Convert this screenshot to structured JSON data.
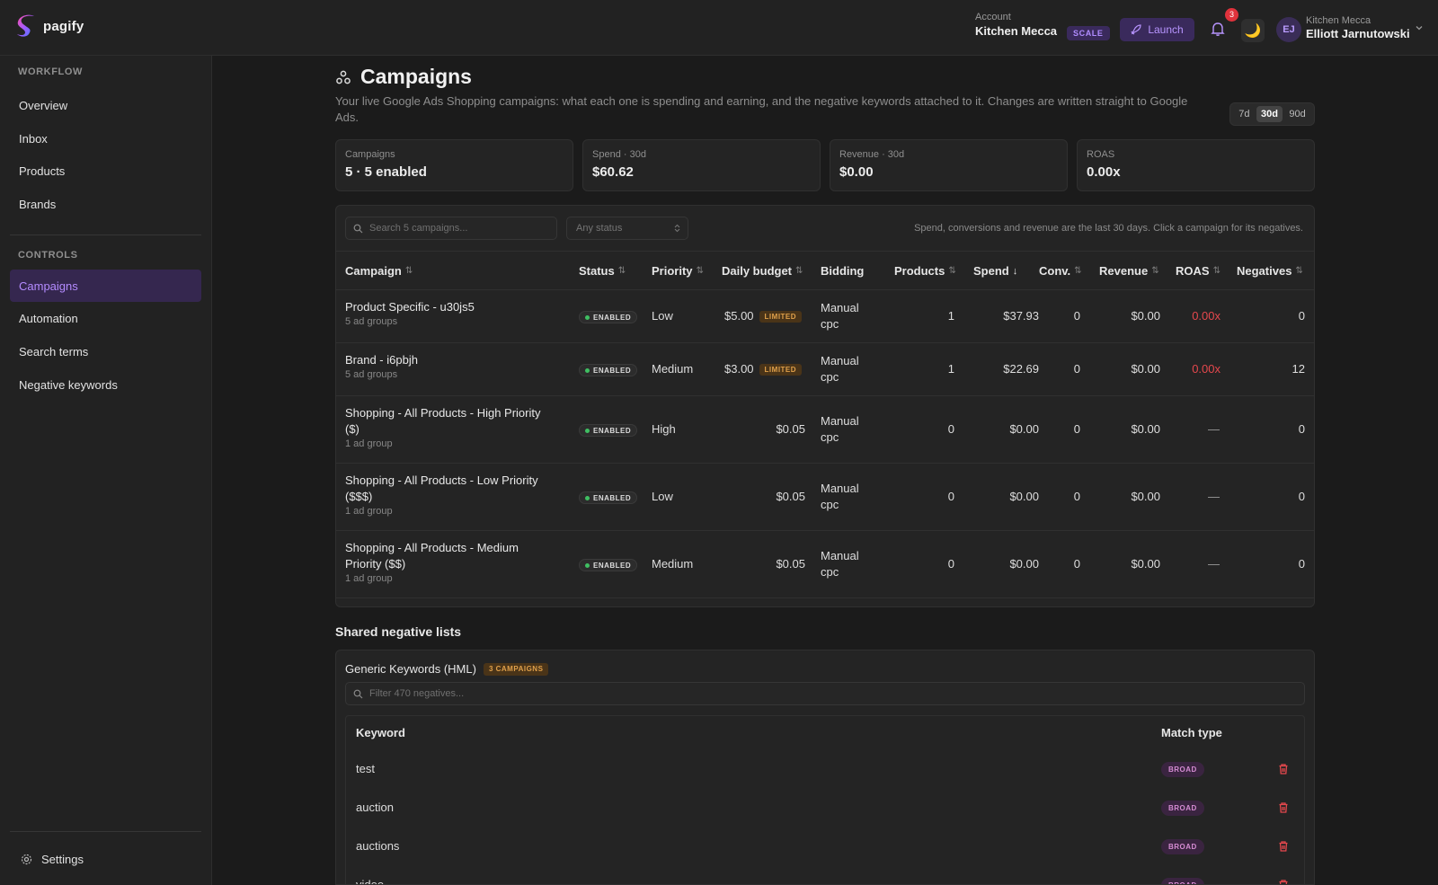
{
  "app": {
    "name": "pagify"
  },
  "header": {
    "account_label": "Account",
    "account_name": "Kitchen Mecca",
    "plan": "SCALE",
    "launch_label": "Launch",
    "notification_count": "3",
    "theme_icon": "🌙",
    "user_initials": "EJ",
    "user_org": "Kitchen Mecca",
    "user_name": "Elliott Jarnutowski"
  },
  "sidebar": {
    "workflow_heading": "WORKFLOW",
    "workflow_items": [
      {
        "label": "Overview"
      },
      {
        "label": "Inbox"
      },
      {
        "label": "Products"
      },
      {
        "label": "Brands"
      }
    ],
    "controls_heading": "CONTROLS",
    "controls_items": [
      {
        "label": "Campaigns",
        "active": true
      },
      {
        "label": "Automation"
      },
      {
        "label": "Search terms"
      },
      {
        "label": "Negative keywords"
      }
    ],
    "settings_label": "Settings"
  },
  "page": {
    "title": "Campaigns",
    "description": "Your live Google Ads Shopping campaigns: what each one is spending and earning, and the negative keywords attached to it. Changes are written straight to Google Ads.",
    "ranges": [
      "7d",
      "30d",
      "90d"
    ],
    "selected_range": "30d"
  },
  "stats": [
    {
      "label": "Campaigns",
      "value": "5 · 5 enabled"
    },
    {
      "label": "Spend · 30d",
      "value": "$60.62"
    },
    {
      "label": "Revenue · 30d",
      "value": "$0.00"
    },
    {
      "label": "ROAS",
      "value": "0.00x"
    }
  ],
  "campaigns_table": {
    "search_placeholder": "Search 5 campaigns...",
    "status_filter": "Any status",
    "note": "Spend, conversions and revenue are the last 30 days. Click a campaign for its negatives.",
    "columns": {
      "campaign": "Campaign",
      "status": "Status",
      "priority": "Priority",
      "daily_budget": "Daily budget",
      "bidding": "Bidding",
      "products": "Products",
      "spend": "Spend",
      "conv": "Conv.",
      "revenue": "Revenue",
      "roas": "ROAS",
      "negatives": "Negatives"
    },
    "rows": [
      {
        "name_line1": "Product Specific - u30js5",
        "name_line2": "",
        "sub": "5 ad groups",
        "status": "ENABLED",
        "priority": "Low",
        "budget": "$5.00",
        "budget_badge": "LIMITED",
        "bidding_line1": "Manual",
        "bidding_line2": "cpc",
        "products": "1",
        "spend": "$37.93",
        "conv": "0",
        "revenue": "$0.00",
        "roas": "0.00x",
        "negatives": "0"
      },
      {
        "name_line1": "Brand - i6pbjh",
        "name_line2": "",
        "sub": "5 ad groups",
        "status": "ENABLED",
        "priority": "Medium",
        "budget": "$3.00",
        "budget_badge": "LIMITED",
        "bidding_line1": "Manual",
        "bidding_line2": "cpc",
        "products": "1",
        "spend": "$22.69",
        "conv": "0",
        "revenue": "$0.00",
        "roas": "0.00x",
        "negatives": "12"
      },
      {
        "name_line1": "Shopping - All Products - High Priority",
        "name_line2": "($)",
        "sub": "1 ad group",
        "status": "ENABLED",
        "priority": "High",
        "budget": "$0.05",
        "budget_badge": "",
        "bidding_line1": "Manual",
        "bidding_line2": "cpc",
        "products": "0",
        "spend": "$0.00",
        "conv": "0",
        "revenue": "$0.00",
        "roas": "—",
        "negatives": "0"
      },
      {
        "name_line1": "Shopping - All Products - Low Priority",
        "name_line2": "($$$)",
        "sub": "1 ad group",
        "status": "ENABLED",
        "priority": "Low",
        "budget": "$0.05",
        "budget_badge": "",
        "bidding_line1": "Manual",
        "bidding_line2": "cpc",
        "products": "0",
        "spend": "$0.00",
        "conv": "0",
        "revenue": "$0.00",
        "roas": "—",
        "negatives": "0"
      },
      {
        "name_line1": "Shopping - All Products - Medium",
        "name_line2": "Priority ($$)",
        "sub": "1 ad group",
        "status": "ENABLED",
        "priority": "Medium",
        "budget": "$0.05",
        "budget_badge": "",
        "bidding_line1": "Manual",
        "bidding_line2": "cpc",
        "products": "0",
        "spend": "$0.00",
        "conv": "0",
        "revenue": "$0.00",
        "roas": "—",
        "negatives": "0"
      }
    ]
  },
  "shared_lists": {
    "title": "Shared negative lists",
    "list_name": "Generic Keywords (HML)",
    "campaign_count": "3 CAMPAIGNS",
    "filter_placeholder": "Filter 470 negatives...",
    "columns": {
      "keyword": "Keyword",
      "match_type": "Match type"
    },
    "rows": [
      {
        "keyword": "test",
        "match": "BROAD"
      },
      {
        "keyword": "auction",
        "match": "BROAD"
      },
      {
        "keyword": "auctions",
        "match": "BROAD"
      },
      {
        "keyword": "video",
        "match": "BROAD"
      }
    ]
  },
  "colors": {
    "accent": "#b48bff",
    "accent_bg": "#35274f",
    "danger": "#e5484d",
    "success": "#3fbf62",
    "warning": "#e0a04a"
  },
  "icons": [
    "pagify-logo-icon",
    "rocket-icon",
    "bell-icon",
    "moon-icon",
    "chevron-down-icon",
    "campaigns-icon",
    "search-icon",
    "select-chevron-icon",
    "sort-icon",
    "sort-down-icon",
    "trash-icon",
    "gear-icon"
  ]
}
